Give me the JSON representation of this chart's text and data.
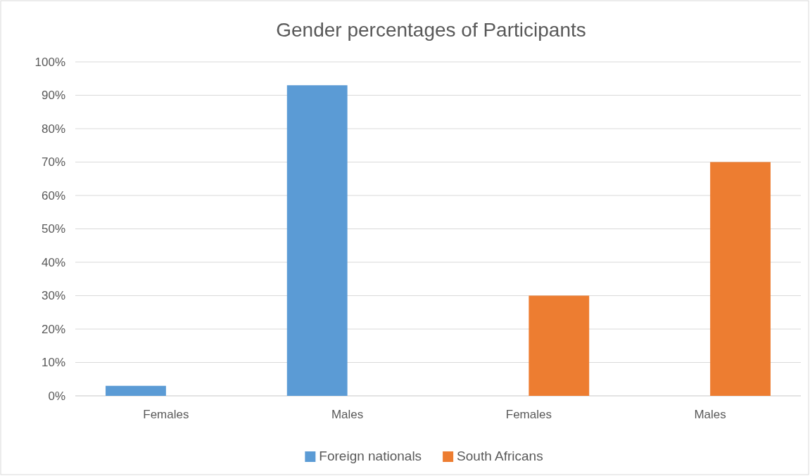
{
  "chart_data": {
    "type": "bar",
    "title": "Gender percentages of Participants",
    "categories": [
      "Females",
      "Males",
      "Females",
      "Males"
    ],
    "series": [
      {
        "name": "Foreign nationals",
        "color": "#5b9bd5",
        "values": [
          3,
          93,
          null,
          null
        ]
      },
      {
        "name": "South Africans",
        "color": "#ed7d31",
        "values": [
          null,
          null,
          30,
          70
        ]
      }
    ],
    "ylim": [
      0,
      100
    ],
    "yticks": [
      {
        "value": 0,
        "label": "0%"
      },
      {
        "value": 10,
        "label": "10%"
      },
      {
        "value": 20,
        "label": "20%"
      },
      {
        "value": 30,
        "label": "30%"
      },
      {
        "value": 40,
        "label": "40%"
      },
      {
        "value": 50,
        "label": "50%"
      },
      {
        "value": 60,
        "label": "60%"
      },
      {
        "value": 70,
        "label": "70%"
      },
      {
        "value": 80,
        "label": "80%"
      },
      {
        "value": 90,
        "label": "90%"
      },
      {
        "value": 100,
        "label": "100%"
      }
    ],
    "grid": "y",
    "legend": "bottom"
  }
}
